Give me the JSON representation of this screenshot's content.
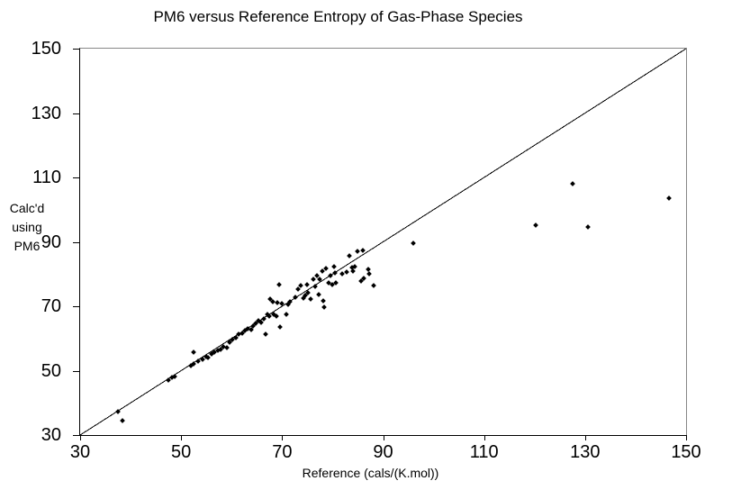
{
  "chart_data": {
    "type": "scatter",
    "title": "PM6 versus Reference Entropy of Gas-Phase Species",
    "xlabel": "Reference (cals/(K.mol))",
    "ylabel": "Calc'd using PM6",
    "ylabel_lines": [
      "Calc'd",
      "using",
      "PM6"
    ],
    "xlim": [
      30,
      150
    ],
    "ylim": [
      30,
      150
    ],
    "x_ticks": [
      30,
      50,
      70,
      90,
      110,
      130,
      150
    ],
    "y_ticks": [
      30,
      50,
      70,
      90,
      110,
      130,
      150
    ],
    "grid": false,
    "legend_position": "none",
    "marker_shape": "diamond",
    "marker_color": "#000000",
    "identity_line": {
      "from": [
        30,
        30
      ],
      "to": [
        150,
        150
      ],
      "color": "#000000"
    },
    "frame_color": "#878787",
    "axis_color": "#000000",
    "background_color": "#ffffff",
    "points": [
      [
        37.5,
        37.3
      ],
      [
        38.3,
        34.6
      ],
      [
        47.4,
        47.2
      ],
      [
        48.1,
        47.8
      ],
      [
        48.7,
        48.2
      ],
      [
        51.9,
        51.5
      ],
      [
        52.4,
        52.1
      ],
      [
        52.5,
        55.6
      ],
      [
        53.4,
        52.9
      ],
      [
        54.2,
        53.5
      ],
      [
        54.9,
        54.4
      ],
      [
        55.4,
        54.1
      ],
      [
        56.0,
        55.2
      ],
      [
        56.6,
        55.7
      ],
      [
        57.2,
        56.3
      ],
      [
        57.9,
        56.7
      ],
      [
        58.4,
        57.4
      ],
      [
        59.1,
        57.1
      ],
      [
        59.6,
        58.7
      ],
      [
        60.2,
        59.7
      ],
      [
        60.8,
        60.2
      ],
      [
        61.4,
        61.3
      ],
      [
        62.1,
        61.7
      ],
      [
        62.7,
        62.4
      ],
      [
        63.2,
        63.1
      ],
      [
        63.8,
        62.6
      ],
      [
        64.3,
        63.9
      ],
      [
        64.8,
        64.6
      ],
      [
        65.3,
        65.4
      ],
      [
        65.8,
        64.9
      ],
      [
        66.3,
        66.0
      ],
      [
        66.7,
        61.3
      ],
      [
        67.0,
        67.4
      ],
      [
        67.4,
        66.9
      ],
      [
        67.6,
        72.3
      ],
      [
        68.2,
        71.5
      ],
      [
        68.4,
        67.4
      ],
      [
        68.8,
        66.9
      ],
      [
        69.1,
        71.0
      ],
      [
        69.4,
        76.6
      ],
      [
        69.5,
        63.6
      ],
      [
        70.0,
        70.8
      ],
      [
        70.9,
        67.4
      ],
      [
        71.2,
        70.6
      ],
      [
        71.6,
        71.5
      ],
      [
        72.7,
        72.9
      ],
      [
        73.2,
        75.3
      ],
      [
        73.6,
        76.5
      ],
      [
        74.2,
        72.5
      ],
      [
        74.6,
        73.4
      ],
      [
        74.9,
        76.7
      ],
      [
        75.1,
        74.3
      ],
      [
        75.7,
        72.1
      ],
      [
        76.2,
        78.4
      ],
      [
        76.5,
        76.2
      ],
      [
        76.9,
        79.4
      ],
      [
        77.2,
        73.5
      ],
      [
        77.5,
        78.3
      ],
      [
        78.0,
        80.9
      ],
      [
        78.2,
        71.6
      ],
      [
        78.4,
        69.7
      ],
      [
        78.7,
        81.7
      ],
      [
        79.3,
        77.4
      ],
      [
        79.6,
        79.5
      ],
      [
        79.9,
        76.8
      ],
      [
        80.2,
        82.2
      ],
      [
        80.5,
        80.3
      ],
      [
        80.6,
        77.2
      ],
      [
        81.9,
        80.1
      ],
      [
        82.8,
        80.5
      ],
      [
        83.4,
        85.6
      ],
      [
        83.8,
        81.9
      ],
      [
        84.1,
        81.0
      ],
      [
        84.4,
        82.4
      ],
      [
        84.9,
        87.1
      ],
      [
        85.7,
        77.9
      ],
      [
        86.0,
        87.3
      ],
      [
        86.2,
        78.6
      ],
      [
        87.0,
        81.5
      ],
      [
        87.2,
        80.1
      ],
      [
        88.1,
        76.3
      ],
      [
        95.9,
        89.5
      ],
      [
        120.3,
        95.2
      ],
      [
        127.6,
        108.0
      ],
      [
        130.6,
        94.5
      ],
      [
        146.6,
        103.5
      ]
    ]
  }
}
